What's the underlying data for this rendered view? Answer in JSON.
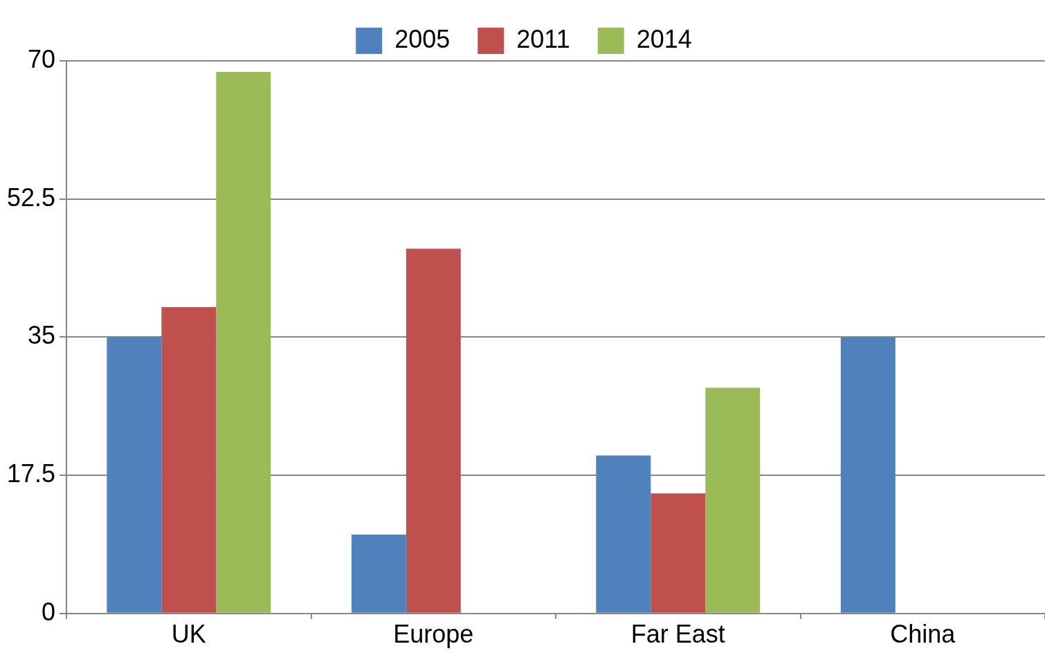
{
  "chart_data": {
    "type": "bar",
    "categories": [
      "UK",
      "Europe",
      "Far East",
      "China"
    ],
    "series": [
      {
        "name": "2005",
        "color": "#4f81bd",
        "values": [
          35,
          10,
          20,
          35
        ]
      },
      {
        "name": "2011",
        "color": "#c0504d",
        "values": [
          38.8,
          46.2,
          15.2,
          null
        ]
      },
      {
        "name": "2014",
        "color": "#9bbb59",
        "values": [
          68.6,
          null,
          28.6,
          null
        ]
      }
    ],
    "ylim": [
      0,
      70
    ],
    "yticks": [
      0,
      17.5,
      35,
      52.5,
      70
    ],
    "grid": "y",
    "legend": "top"
  }
}
